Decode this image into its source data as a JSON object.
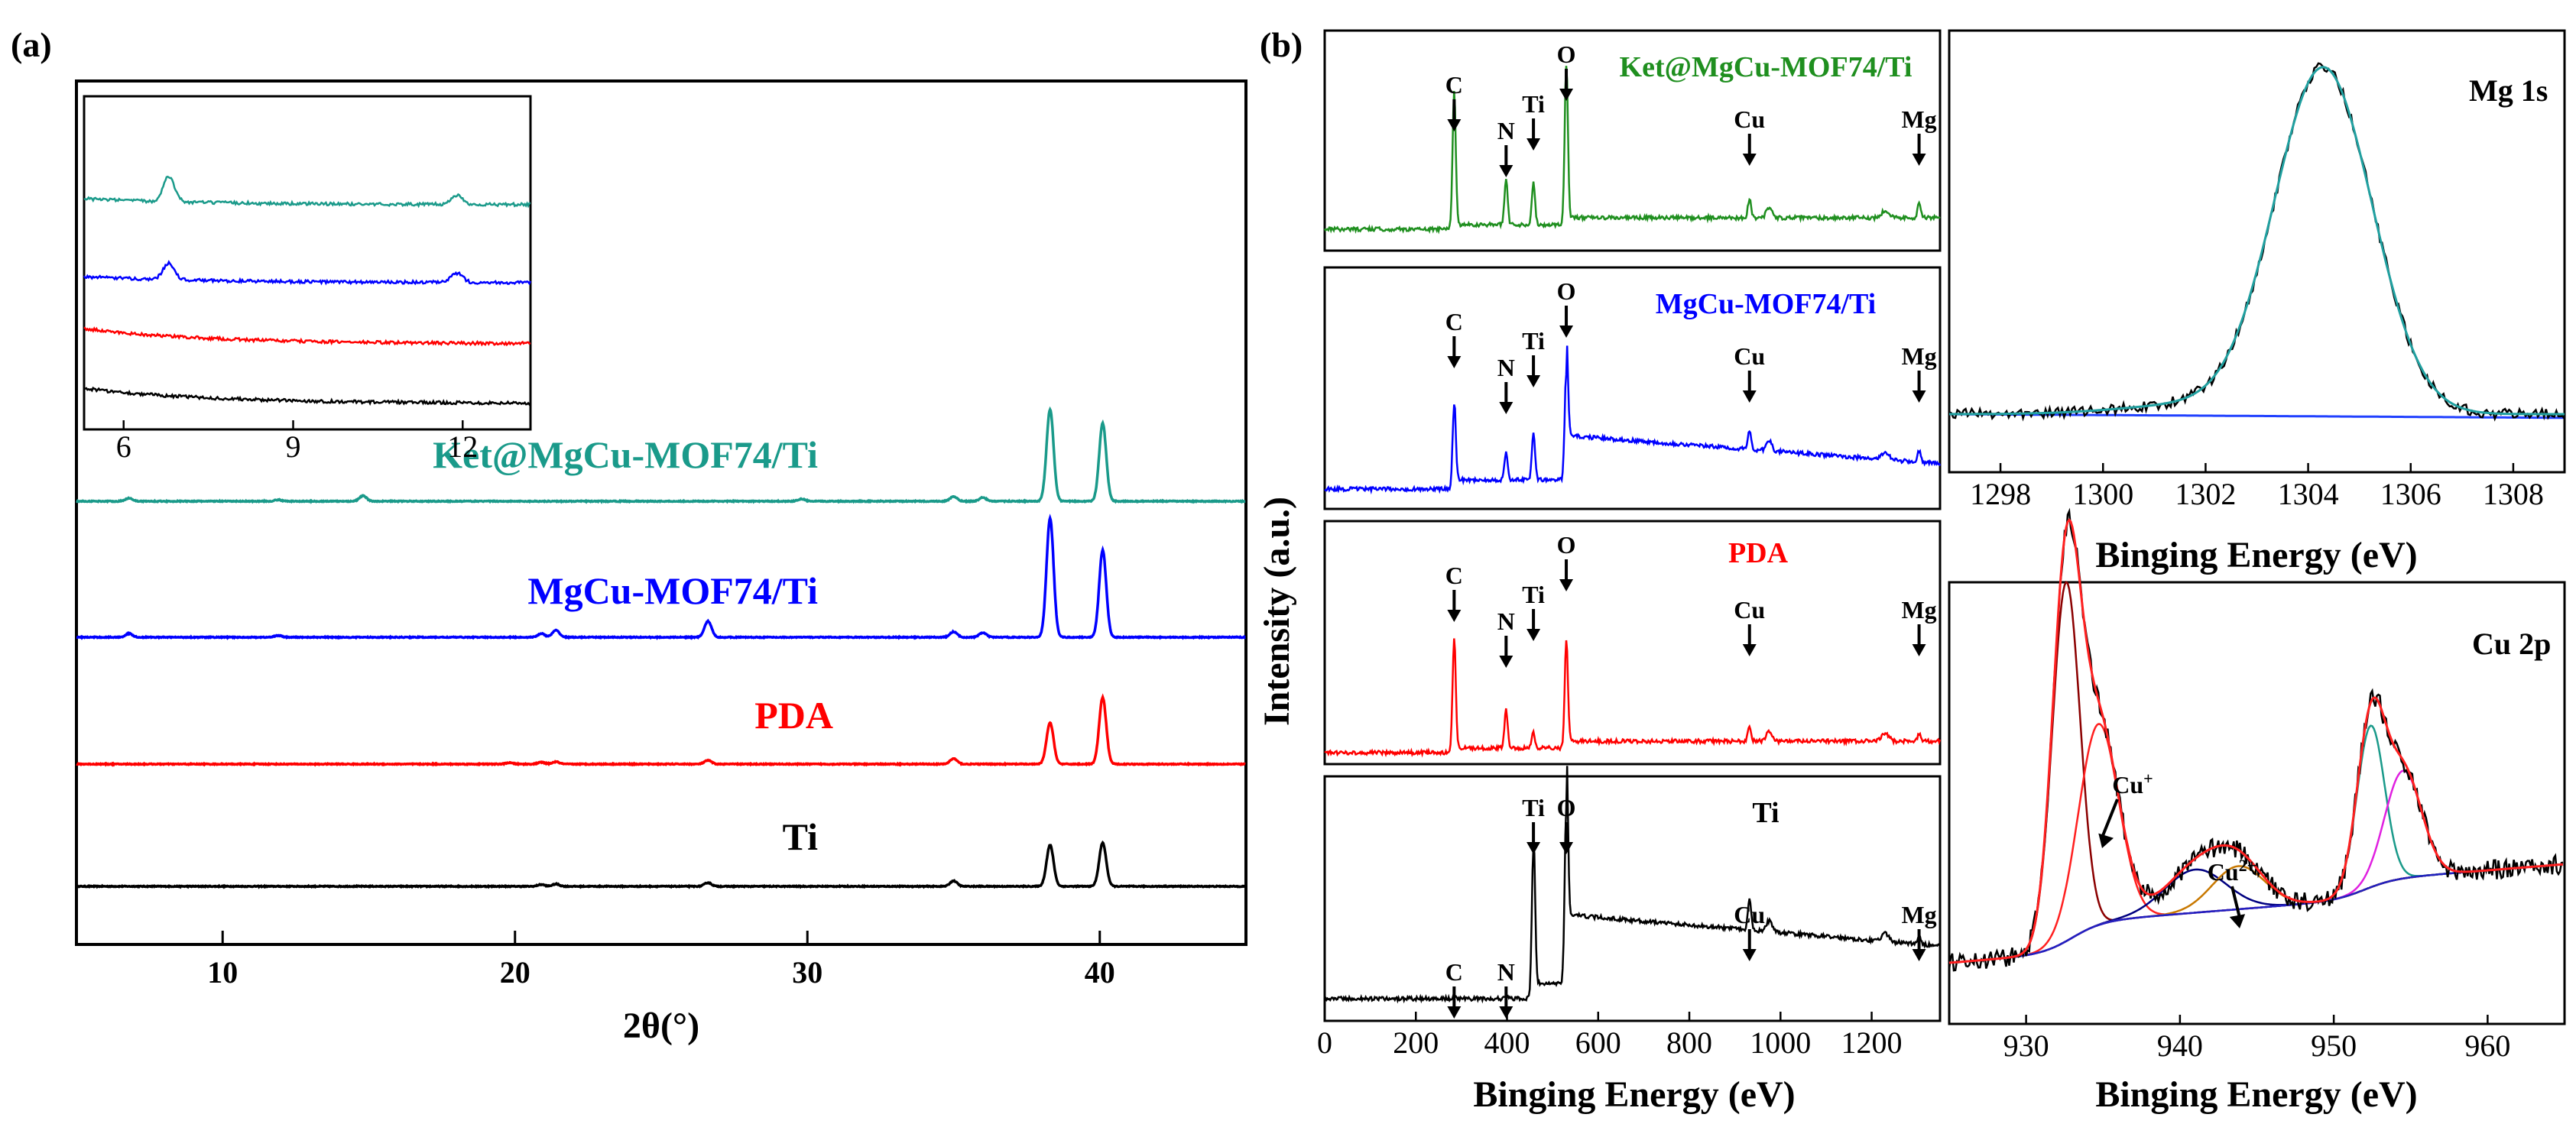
{
  "panel_labels": {
    "a": "(a)",
    "b": "(b)"
  },
  "colors": {
    "ti": "#000000",
    "pda": "#ff0000",
    "mgcu": "#0000ff",
    "ket": "#1a9a8a",
    "ket_xps": "#1f8f1f",
    "fit_teal": "#20a0a0",
    "baseline": "#2040ff"
  },
  "chart_data": [
    {
      "id": "xrd",
      "type": "line",
      "xlabel": "2θ(°)",
      "ylabel": "",
      "xlim": [
        5,
        45
      ],
      "xticks": [
        10,
        20,
        30,
        40
      ],
      "grid": false,
      "series": [
        {
          "name": "Ti",
          "color": "#000000",
          "peaks": [
            [
              26.6,
              0.08
            ],
            [
              35.0,
              0.12
            ],
            [
              38.3,
              0.9
            ],
            [
              40.1,
              0.95
            ],
            [
              20.9,
              0.04
            ],
            [
              21.4,
              0.05
            ]
          ]
        },
        {
          "name": "PDA",
          "color": "#ff0000",
          "peaks": [
            [
              26.6,
              0.08
            ],
            [
              35.0,
              0.12
            ],
            [
              38.3,
              0.9
            ],
            [
              40.1,
              1.45
            ],
            [
              20.9,
              0.04
            ],
            [
              21.4,
              0.05
            ],
            [
              19.8,
              0.03
            ]
          ]
        },
        {
          "name": "MgCu-MOF74/Ti",
          "color": "#0000ff",
          "peaks": [
            [
              6.8,
              0.08
            ],
            [
              26.6,
              0.35
            ],
            [
              35.0,
              0.12
            ],
            [
              36.0,
              0.1
            ],
            [
              38.3,
              2.6
            ],
            [
              40.1,
              1.9
            ],
            [
              20.9,
              0.08
            ],
            [
              21.4,
              0.15
            ],
            [
              11.9,
              0.04
            ]
          ]
        },
        {
          "name": "Ket@MgCu-MOF74/Ti",
          "color": "#1a9a8a",
          "peaks": [
            [
              6.8,
              0.07
            ],
            [
              14.8,
              0.12
            ],
            [
              29.8,
              0.05
            ],
            [
              35.0,
              0.1
            ],
            [
              36.0,
              0.08
            ],
            [
              38.3,
              2.0
            ],
            [
              40.1,
              1.7
            ],
            [
              11.9,
              0.03
            ]
          ]
        }
      ],
      "inset": {
        "xlim": [
          5.3,
          13.2
        ],
        "xticks": [
          6,
          9,
          12
        ],
        "series_order": [
          "Ti",
          "PDA",
          "MgCu-MOF74/Ti",
          "Ket@MgCu-MOF74/Ti"
        ],
        "peaks": [
          6.8,
          11.9
        ]
      }
    },
    {
      "id": "xps-survey",
      "type": "line",
      "xlabel": "Binging Energy (eV)",
      "ylabel": "Intensity (a.u.)",
      "xlim": [
        0,
        1350
      ],
      "xticks": [
        0,
        200,
        400,
        600,
        800,
        1000,
        1200
      ],
      "series": [
        {
          "name": "Ket@MgCu-MOF74/Ti",
          "color": "#1f8f1f",
          "markers": [
            {
              "label": "C",
              "x": 284
            },
            {
              "label": "N",
              "x": 398
            },
            {
              "label": "Ti",
              "x": 458
            },
            {
              "label": "O",
              "x": 530
            },
            {
              "label": "Cu",
              "x": 932
            },
            {
              "label": "Mg",
              "x": 1304
            }
          ]
        },
        {
          "name": "MgCu-MOF74/Ti",
          "color": "#0000ff",
          "markers": [
            {
              "label": "C",
              "x": 284
            },
            {
              "label": "N",
              "x": 398
            },
            {
              "label": "Ti",
              "x": 458
            },
            {
              "label": "O",
              "x": 530
            },
            {
              "label": "Cu",
              "x": 932
            },
            {
              "label": "Mg",
              "x": 1304
            }
          ]
        },
        {
          "name": "PDA",
          "color": "#ff0000",
          "markers": [
            {
              "label": "C",
              "x": 284
            },
            {
              "label": "N",
              "x": 398
            },
            {
              "label": "Ti",
              "x": 458
            },
            {
              "label": "O",
              "x": 530
            },
            {
              "label": "Cu",
              "x": 932
            },
            {
              "label": "Mg",
              "x": 1304
            }
          ]
        },
        {
          "name": "Ti",
          "color": "#000000",
          "markers": [
            {
              "label": "C",
              "x": 284
            },
            {
              "label": "N",
              "x": 398
            },
            {
              "label": "Ti",
              "x": 458
            },
            {
              "label": "O",
              "x": 530
            },
            {
              "label": "Cu",
              "x": 932
            },
            {
              "label": "Mg",
              "x": 1304
            }
          ]
        }
      ]
    },
    {
      "id": "mg1s",
      "type": "line",
      "title": "Mg 1s",
      "xlabel": "Binging Energy (eV)",
      "xlim": [
        1297,
        1309
      ],
      "xticks": [
        1298,
        1300,
        1302,
        1304,
        1306,
        1308
      ],
      "peak_center": 1304.3,
      "peak_width": 0.95
    },
    {
      "id": "cu2p",
      "type": "line",
      "title": "Cu 2p",
      "xlabel": "Binging Energy (eV)",
      "xlim": [
        925,
        965
      ],
      "xticks": [
        930,
        940,
        950,
        960
      ],
      "annotations": [
        {
          "text": "Cu",
          "sup": "+",
          "x": 935.0
        },
        {
          "text": "Cu",
          "sup": "2+",
          "x": 943.6
        }
      ],
      "components": [
        {
          "center": 932.6,
          "width": 0.9,
          "height": 1.0,
          "color": "#8b0000"
        },
        {
          "center": 934.7,
          "width": 1.3,
          "height": 0.56,
          "color": "#ff2020"
        },
        {
          "center": 941.0,
          "width": 2.0,
          "height": 0.12,
          "color": "#000080"
        },
        {
          "center": 943.8,
          "width": 1.7,
          "height": 0.12,
          "color": "#c87800"
        },
        {
          "center": 952.4,
          "width": 0.9,
          "height": 0.45,
          "color": "#1a9a8a"
        },
        {
          "center": 954.5,
          "width": 1.2,
          "height": 0.3,
          "color": "#e020e0"
        }
      ]
    }
  ]
}
